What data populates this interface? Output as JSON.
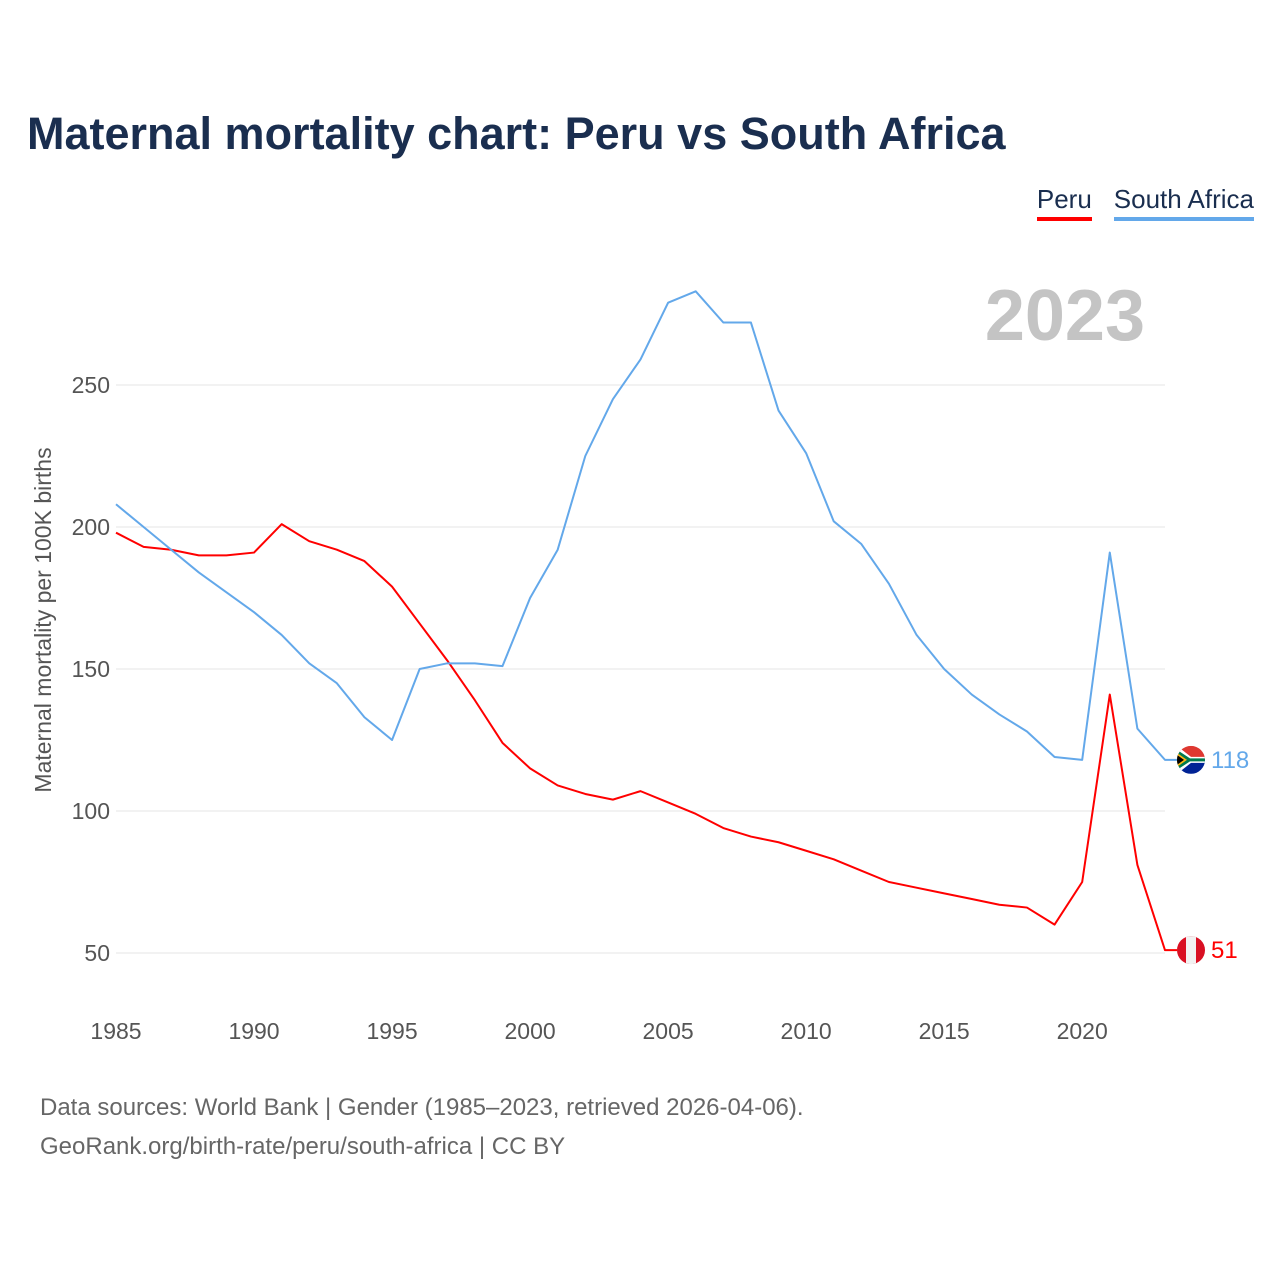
{
  "title": "Maternal mortality chart: Peru vs South Africa",
  "legend": [
    {
      "label": "Peru",
      "color": "#ff0000"
    },
    {
      "label": "South Africa",
      "color": "#63a8ea"
    }
  ],
  "footer": {
    "line1": "Data sources: World Bank | Gender (1985–2023, retrieved 2026-04-06).",
    "line2": "GeoRank.org/birth-rate/peru/south-africa | CC BY"
  },
  "chart_data": {
    "type": "line",
    "title": "Maternal mortality chart: Peru vs South Africa",
    "year_label": "2023",
    "xlabel": "",
    "ylabel": "Maternal mortality per 100K births",
    "xlim": [
      1985,
      2023
    ],
    "ylim": [
      50,
      290
    ],
    "x_ticks": [
      1985,
      1990,
      1995,
      2000,
      2005,
      2010,
      2015,
      2020
    ],
    "y_ticks": [
      50,
      100,
      150,
      200,
      250
    ],
    "grid": true,
    "legend_position": "top-right",
    "x": [
      1985,
      1986,
      1987,
      1988,
      1989,
      1990,
      1991,
      1992,
      1993,
      1994,
      1995,
      1996,
      1997,
      1998,
      1999,
      2000,
      2001,
      2002,
      2003,
      2004,
      2005,
      2006,
      2007,
      2008,
      2009,
      2010,
      2011,
      2012,
      2013,
      2014,
      2015,
      2016,
      2017,
      2018,
      2019,
      2020,
      2021,
      2022,
      2023
    ],
    "series": [
      {
        "name": "Peru",
        "color": "#ff0000",
        "end_label": "51",
        "flag": "peru-flag",
        "values": [
          198,
          193,
          192,
          190,
          190,
          191,
          201,
          195,
          192,
          188,
          179,
          166,
          153,
          139,
          124,
          115,
          109,
          106,
          104,
          107,
          103,
          99,
          94,
          91,
          89,
          86,
          83,
          79,
          75,
          73,
          71,
          69,
          67,
          66,
          60,
          75,
          141,
          81,
          51
        ]
      },
      {
        "name": "South Africa",
        "color": "#63a8ea",
        "end_label": "118",
        "flag": "south-africa-flag",
        "values": [
          208,
          200,
          192,
          184,
          177,
          170,
          162,
          152,
          145,
          133,
          125,
          150,
          152,
          152,
          151,
          175,
          192,
          225,
          245,
          259,
          279,
          283,
          272,
          272,
          241,
          226,
          202,
          194,
          180,
          162,
          150,
          141,
          134,
          128,
          119,
          118,
          191,
          129,
          118
        ]
      }
    ]
  }
}
